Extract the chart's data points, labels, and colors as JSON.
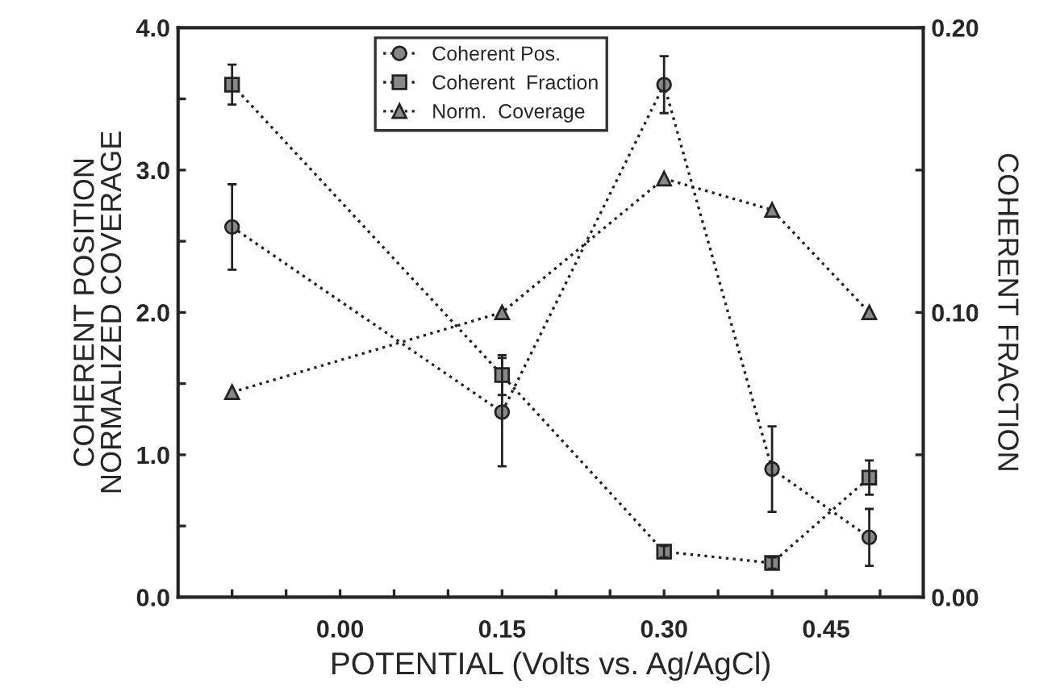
{
  "chart_data": {
    "type": "line",
    "xlabel": "POTENTIAL (Volts vs. Ag/AgCl)",
    "ylabel": "COHERENT POSITION\nNORMALIZED COVERAGE",
    "y2label": "COHERENT FRACTION",
    "x": [
      -0.1,
      0.15,
      0.3,
      0.4,
      0.49
    ],
    "series": [
      {
        "name": "Coherent Pos.",
        "color": "#222222",
        "marker": "circle",
        "values": [
          2.6,
          1.3,
          3.6,
          0.9,
          0.42
        ],
        "errors": [
          0.3,
          0.38,
          0.2,
          0.3,
          0.2
        ]
      },
      {
        "name": "Coherent  Fraction",
        "color": "#222222",
        "marker": "square",
        "axis": "y2",
        "values": [
          0.18,
          0.078,
          0.016,
          0.012,
          0.042
        ],
        "errors": [
          0.007,
          0.007,
          0.002,
          0.002,
          0.006
        ]
      },
      {
        "name": "Norm.  Coverage",
        "color": "#222222",
        "marker": "triangle",
        "values": [
          1.44,
          2.0,
          2.94,
          2.72,
          2.0
        ]
      }
    ],
    "line_style": "dotted",
    "legend": "top",
    "grid": false,
    "xlim": [
      -0.15,
      0.54
    ],
    "xticks": [
      {
        "value": -0.1,
        "label": null
      },
      {
        "value": -0.05,
        "label": null
      },
      {
        "value": 0.0,
        "label": "0.00"
      },
      {
        "value": 0.05,
        "label": null
      },
      {
        "value": 0.1,
        "label": null
      },
      {
        "value": 0.15,
        "label": "0.15"
      },
      {
        "value": 0.2,
        "label": null
      },
      {
        "value": 0.25,
        "label": null
      },
      {
        "value": 0.3,
        "label": "0.30"
      },
      {
        "value": 0.35,
        "label": null
      },
      {
        "value": 0.4,
        "label": null
      },
      {
        "value": 0.45,
        "label": "0.45"
      },
      {
        "value": 0.5,
        "label": null
      }
    ],
    "ylim": [
      0,
      4
    ],
    "yticks": [
      {
        "value": 0,
        "label": "0.0"
      },
      {
        "value": 0.5,
        "label": null
      },
      {
        "value": 1,
        "label": "1.0"
      },
      {
        "value": 1.5,
        "label": null
      },
      {
        "value": 2,
        "label": "2.0"
      },
      {
        "value": 2.5,
        "label": null
      },
      {
        "value": 3,
        "label": "3.0"
      },
      {
        "value": 3.5,
        "label": null
      },
      {
        "value": 4,
        "label": "4.0"
      }
    ],
    "y2lim": [
      0,
      0.2
    ],
    "y2ticks": [
      {
        "value": 0,
        "label": "0.00"
      },
      {
        "value": 0.05,
        "label": null
      },
      {
        "value": 0.1,
        "label": "0.10"
      },
      {
        "value": 0.15,
        "label": null
      },
      {
        "value": 0.2,
        "label": "0.20"
      }
    ]
  }
}
